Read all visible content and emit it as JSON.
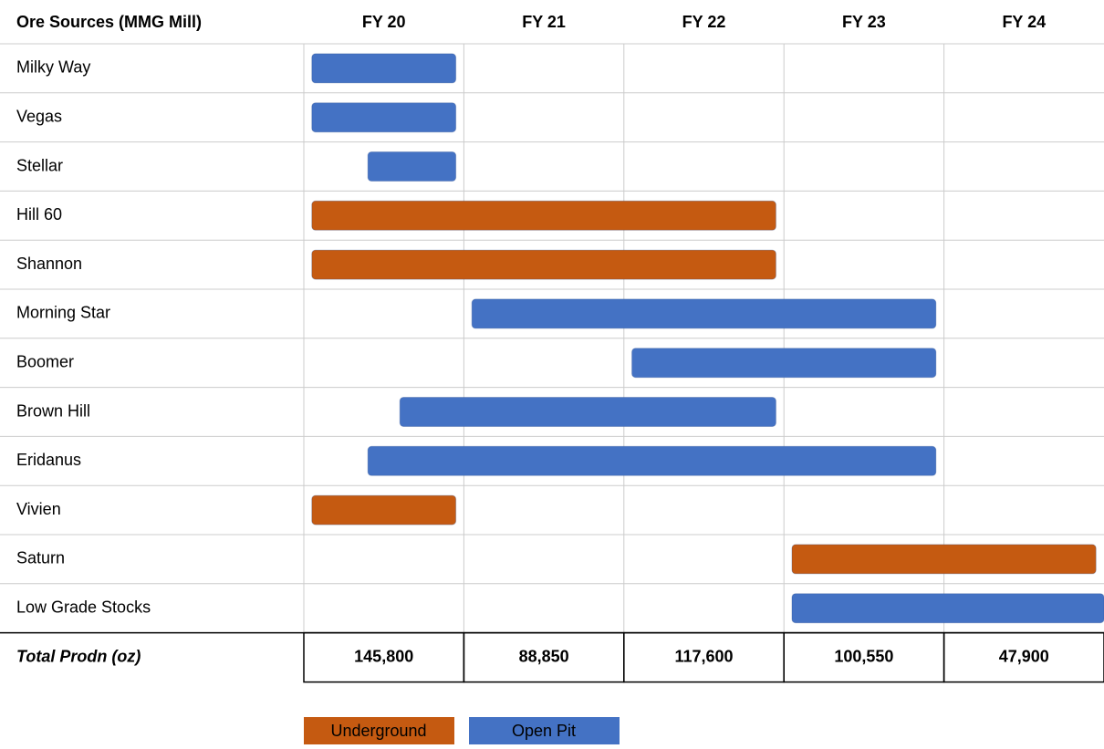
{
  "chart_data": {
    "type": "gantt",
    "row_header": "Ore Sources (MMG Mill)",
    "categories": [
      "Milky Way",
      "Vegas",
      "Stellar",
      "Hill 60",
      "Shannon",
      "Morning Star",
      "Boomer",
      "Brown Hill",
      "Eridanus",
      "Vivien",
      "Saturn",
      "Low Grade Stocks"
    ],
    "xlim": [
      20,
      25
    ],
    "xticks": [
      {
        "value": 20,
        "label": "FY 20"
      },
      {
        "value": 21,
        "label": "FY 21"
      },
      {
        "value": 22,
        "label": "FY 22"
      },
      {
        "value": 23,
        "label": "FY 23"
      },
      {
        "value": 24,
        "label": "FY 24"
      }
    ],
    "grid": true,
    "series": [
      {
        "name": "Underground",
        "color": "#c55a11",
        "start": [
          null,
          null,
          null,
          20.05,
          20.05,
          null,
          null,
          null,
          null,
          20.05,
          23.05,
          null
        ],
        "end": [
          null,
          null,
          null,
          22.95,
          22.95,
          null,
          null,
          null,
          null,
          20.95,
          24.95,
          null
        ]
      },
      {
        "name": "Open Pit",
        "color": "#4472c4",
        "start": [
          20.05,
          20.05,
          20.4,
          null,
          null,
          21.05,
          22.05,
          20.6,
          20.4,
          null,
          null,
          23.05
        ],
        "end": [
          20.95,
          20.95,
          20.95,
          null,
          null,
          23.95,
          23.95,
          22.95,
          23.95,
          null,
          null,
          25
        ]
      }
    ],
    "total": {
      "label": "Total Prodn (oz)",
      "values": [
        145800,
        88850,
        117600,
        100550,
        47900
      ],
      "value_labels": [
        "145,800",
        "88,850",
        "117,600",
        "100,550",
        "47,900"
      ]
    }
  }
}
